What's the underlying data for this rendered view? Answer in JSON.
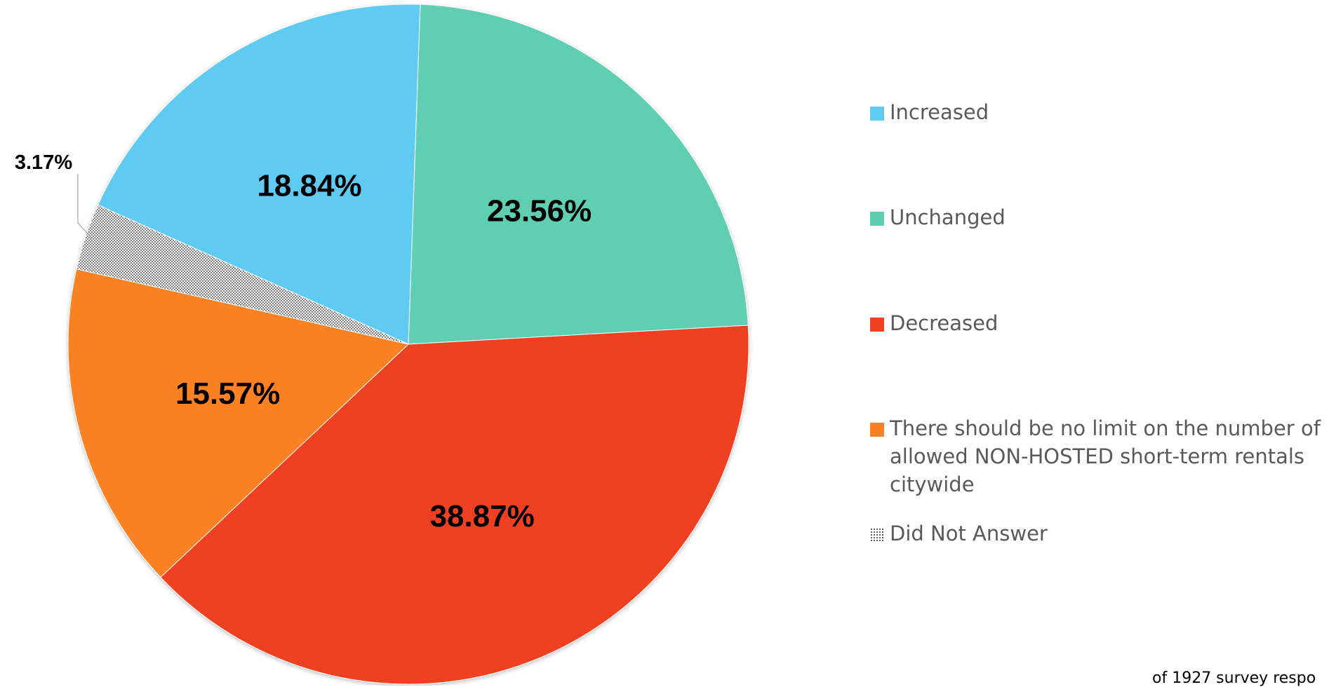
{
  "chart_data": {
    "type": "pie",
    "slices": [
      {
        "name": "Increased",
        "value": 18.84,
        "label": "18.84%",
        "color": "#5ECBF2",
        "pattern": false
      },
      {
        "name": "Unchanged",
        "value": 23.56,
        "label": "23.56%",
        "color": "#5ECEB2",
        "pattern": false
      },
      {
        "name": "Decreased",
        "value": 38.87,
        "label": "38.87%",
        "color": "#EF4124",
        "pattern": false
      },
      {
        "name": "There should be no limit on the number of allowed NON-HOSTED short-term rentals citywide",
        "value": 15.57,
        "label": "15.57%",
        "color": "#FC8122",
        "pattern": false
      },
      {
        "name": "Did Not Answer",
        "value": 3.17,
        "label": "3.17%",
        "color": "#BFBFBF",
        "pattern": true
      }
    ],
    "legend_position": "right",
    "footnote": "of 1927 survey respo"
  }
}
